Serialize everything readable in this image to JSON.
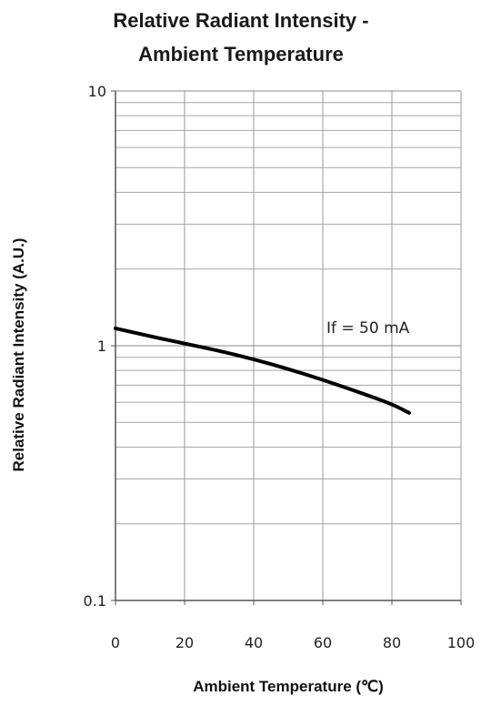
{
  "chart_data": {
    "type": "line",
    "title_lines": [
      "Relative Radiant Intensity -",
      "Ambient Temperature"
    ],
    "xlabel": "Ambient Temperature (℃)",
    "ylabel": "Relative Radiant Intensity (A.U.)",
    "xlim": [
      0,
      100
    ],
    "ylim": [
      0.1,
      10
    ],
    "yscale": "log",
    "grid": true,
    "x_ticks": [
      0,
      20,
      40,
      60,
      80,
      100
    ],
    "x_tick_labels": [
      "0",
      "20",
      "40",
      "60",
      "80",
      "100"
    ],
    "y_ticks": [
      0.1,
      1,
      10
    ],
    "y_tick_labels": [
      "0.1",
      "1",
      "10"
    ],
    "annotation": "If = 50 mA",
    "series": [
      {
        "x": [
          0,
          10,
          20,
          30,
          40,
          50,
          60,
          70,
          80,
          85
        ],
        "y": [
          1.17,
          1.09,
          1.02,
          0.955,
          0.885,
          0.81,
          0.735,
          0.66,
          0.59,
          0.545
        ]
      }
    ]
  }
}
